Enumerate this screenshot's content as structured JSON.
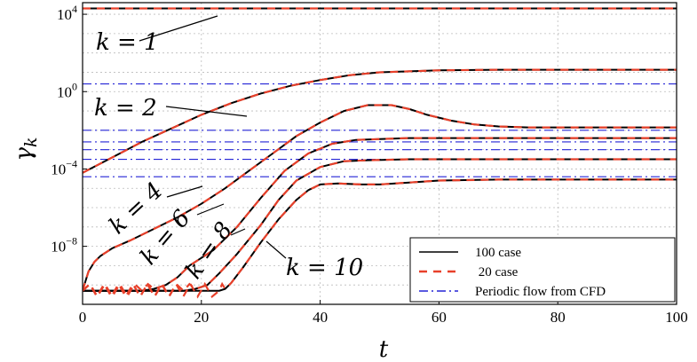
{
  "chart_data": {
    "type": "line",
    "xlabel": "t",
    "ylabel": "γ_k",
    "ylabel_base": "γ",
    "ylabel_sub": "k",
    "xlim": [
      0,
      100
    ],
    "ylim_log10": [
      -11,
      4.6
    ],
    "y_scale": "log",
    "grid": true,
    "legend_placement": "bottom-right",
    "x_ticks": [
      0,
      20,
      40,
      60,
      80,
      100
    ],
    "x_tick_labels": [
      "0",
      "20",
      "40",
      "60",
      "80",
      "100"
    ],
    "y_ticks_log10": [
      4,
      0,
      -4,
      -8
    ],
    "y_tick_labels": [
      {
        "base": "10",
        "exp": "4"
      },
      {
        "base": "10",
        "exp": "0"
      },
      {
        "base": "10",
        "exp": "−4"
      },
      {
        "base": "10",
        "exp": "−8"
      }
    ],
    "legend": [
      {
        "label": "100 case",
        "color": "#000000",
        "style": "solid"
      },
      {
        "label": " 20 case",
        "color": "#e8402a",
        "style": "dashed"
      },
      {
        "label": "Periodic flow from CFD",
        "color": "#2424d6",
        "style": "dashdot"
      }
    ],
    "cfd_levels_log10": [
      0.4,
      -2.0,
      -2.6,
      -3.5,
      -4.4,
      -3.0
    ],
    "series": [
      {
        "k": 1,
        "label": "k = 1",
        "log10_points": [
          [
            0,
            4.3
          ],
          [
            100,
            4.3
          ]
        ]
      },
      {
        "k": 2,
        "label": "k = 2",
        "log10_points": [
          [
            0,
            -4.2
          ],
          [
            5,
            -3.4
          ],
          [
            10,
            -2.6
          ],
          [
            15,
            -1.9
          ],
          [
            20,
            -1.2
          ],
          [
            25,
            -0.6
          ],
          [
            30,
            -0.1
          ],
          [
            35,
            0.3
          ],
          [
            40,
            0.6
          ],
          [
            45,
            0.85
          ],
          [
            50,
            1.0
          ],
          [
            55,
            1.05
          ],
          [
            60,
            1.1
          ],
          [
            70,
            1.13
          ],
          [
            80,
            1.13
          ],
          [
            100,
            1.13
          ]
        ]
      },
      {
        "k": 4,
        "label": "k = 4",
        "log10_points": [
          [
            0,
            -10.3
          ],
          [
            0.5,
            -9.8
          ],
          [
            1,
            -9.3
          ],
          [
            2,
            -8.8
          ],
          [
            3,
            -8.5
          ],
          [
            5,
            -8.1
          ],
          [
            8,
            -7.7
          ],
          [
            12,
            -7.1
          ],
          [
            16,
            -6.5
          ],
          [
            20,
            -5.8
          ],
          [
            24,
            -5.0
          ],
          [
            28,
            -4.1
          ],
          [
            32,
            -3.2
          ],
          [
            36,
            -2.3
          ],
          [
            40,
            -1.6
          ],
          [
            44,
            -1.0
          ],
          [
            48,
            -0.7
          ],
          [
            52,
            -0.7
          ],
          [
            55,
            -0.9
          ],
          [
            58,
            -1.2
          ],
          [
            62,
            -1.5
          ],
          [
            66,
            -1.7
          ],
          [
            70,
            -1.8
          ],
          [
            75,
            -1.85
          ],
          [
            80,
            -1.85
          ],
          [
            100,
            -1.85
          ]
        ]
      },
      {
        "k": 6,
        "label": "k = 6",
        "log10_points": [
          [
            0,
            -10.3
          ],
          [
            10,
            -10.3
          ],
          [
            12,
            -10.2
          ],
          [
            14,
            -10.0
          ],
          [
            16,
            -9.6
          ],
          [
            18,
            -9.0
          ],
          [
            22,
            -8.2
          ],
          [
            26,
            -7.0
          ],
          [
            30,
            -5.5
          ],
          [
            34,
            -4.1
          ],
          [
            38,
            -3.2
          ],
          [
            42,
            -2.7
          ],
          [
            46,
            -2.5
          ],
          [
            50,
            -2.45
          ],
          [
            55,
            -2.4
          ],
          [
            60,
            -2.4
          ],
          [
            100,
            -2.4
          ]
        ]
      },
      {
        "k": 8,
        "label": "k = 8",
        "log10_points": [
          [
            0,
            -10.3
          ],
          [
            17,
            -10.3
          ],
          [
            19,
            -10.2
          ],
          [
            21,
            -10.0
          ],
          [
            23,
            -9.4
          ],
          [
            26,
            -8.4
          ],
          [
            30,
            -6.9
          ],
          [
            33,
            -5.6
          ],
          [
            36,
            -4.6
          ],
          [
            40,
            -3.9
          ],
          [
            44,
            -3.6
          ],
          [
            48,
            -3.55
          ],
          [
            55,
            -3.5
          ],
          [
            60,
            -3.5
          ],
          [
            100,
            -3.5
          ]
        ]
      },
      {
        "k": 10,
        "label": "k = 10",
        "log10_points": [
          [
            0,
            -10.3
          ],
          [
            23,
            -10.3
          ],
          [
            24,
            -10.2
          ],
          [
            25,
            -9.9
          ],
          [
            27,
            -9.1
          ],
          [
            30,
            -7.8
          ],
          [
            33,
            -6.6
          ],
          [
            36,
            -5.6
          ],
          [
            38,
            -5.1
          ],
          [
            40,
            -4.8
          ],
          [
            43,
            -4.75
          ],
          [
            47,
            -4.8
          ],
          [
            50,
            -4.8
          ],
          [
            55,
            -4.7
          ],
          [
            60,
            -4.6
          ],
          [
            70,
            -4.55
          ],
          [
            100,
            -4.55
          ]
        ]
      }
    ]
  }
}
